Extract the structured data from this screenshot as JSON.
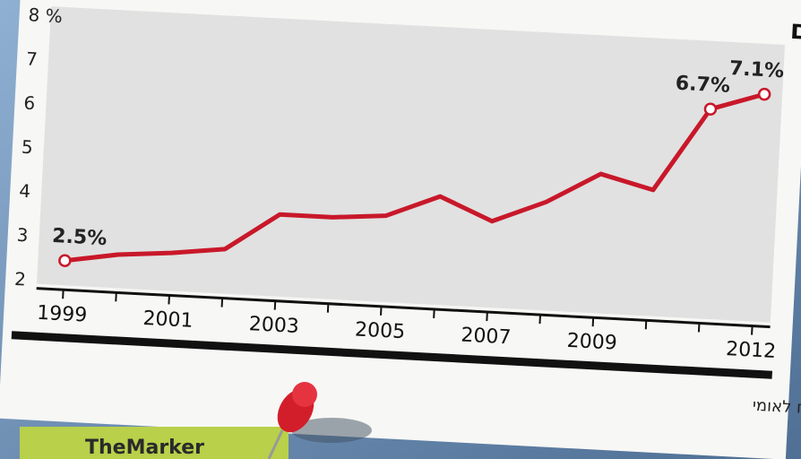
{
  "chart_data": {
    "type": "line",
    "title": "בקרב משפחות עם שני מפרנסים",
    "source": "מקור הנתונים: המוסד לביטוח לאומי",
    "logo": "TheMarker",
    "categories": [
      "1999",
      null,
      "2001",
      null,
      "2003",
      null,
      "2005",
      null,
      "2007",
      null,
      "2009",
      null,
      null,
      "2012"
    ],
    "series": [
      {
        "color": "#c8182a",
        "values": [
          2.5,
          2.7,
          2.8,
          2.95,
          3.8,
          3.8,
          3.9,
          4.4,
          3.9,
          4.4,
          5.1,
          4.8,
          6.7,
          7.1
        ],
        "value_labels": [
          "2.5%",
          null,
          null,
          null,
          null,
          null,
          null,
          null,
          null,
          null,
          null,
          null,
          "6.7%",
          "7.1%"
        ]
      }
    ],
    "ylim": [
      2,
      8
    ],
    "yticks": [
      2,
      3,
      4,
      5,
      6,
      7,
      {
        "value": 8,
        "label": "8 %"
      }
    ],
    "grid": false
  }
}
